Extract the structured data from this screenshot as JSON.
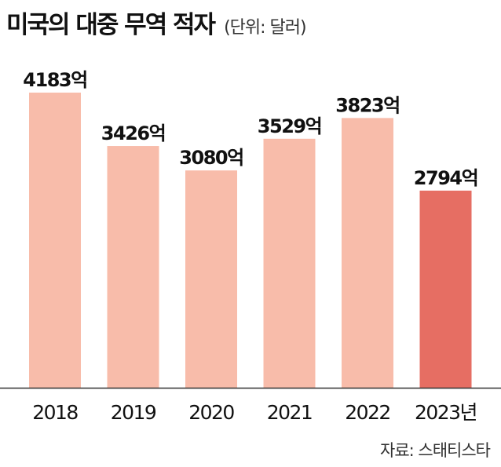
{
  "header": {
    "title": "미국의 대중 무역 적자",
    "unit": "(단위: 달러)"
  },
  "source": "자료: 스태티스타",
  "colors": {
    "bar": "#f8bcaa",
    "highlight_bar": "#e66e63",
    "baseline": "#333333",
    "text": "#111111"
  },
  "chart_data": {
    "type": "bar",
    "categories": [
      "2018",
      "2019",
      "2020",
      "2021",
      "2022",
      "2023년"
    ],
    "values": [
      4183,
      3426,
      3080,
      3529,
      3823,
      2794
    ],
    "value_labels": [
      "4183억",
      "3426억",
      "3080억",
      "3529억",
      "3823억",
      "2794억"
    ],
    "highlight_index": 5,
    "ylim": [
      0,
      4183
    ],
    "grid": false,
    "legend": "none"
  }
}
